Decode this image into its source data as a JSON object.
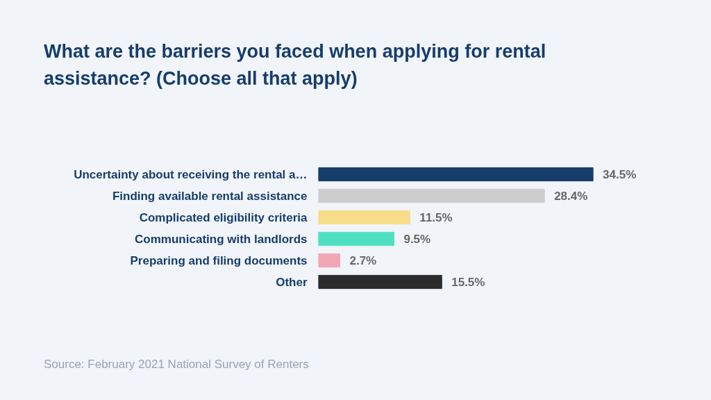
{
  "chart_data": {
    "type": "bar",
    "orientation": "horizontal",
    "title": "What are the barriers you faced when applying for rental assistance? (Choose all that apply)",
    "categories": [
      "Uncertainty about receiving the rental a…",
      "Finding available rental assistance",
      "Complicated eligibility criteria",
      "Communicating with landlords",
      "Preparing and filing documents",
      "Other"
    ],
    "values": [
      34.5,
      28.4,
      11.5,
      9.5,
      2.7,
      15.5
    ],
    "colors": [
      "#163d6b",
      "#cccccc",
      "#f7dc8a",
      "#4fe0c4",
      "#f2a7b5",
      "#2b2b2b"
    ],
    "value_labels": [
      "34.5%",
      "28.4%",
      "11.5%",
      "9.5%",
      "2.7%",
      "15.5%"
    ],
    "annotations": [
      "Source: February 2021 National Survey of Renters"
    ]
  }
}
